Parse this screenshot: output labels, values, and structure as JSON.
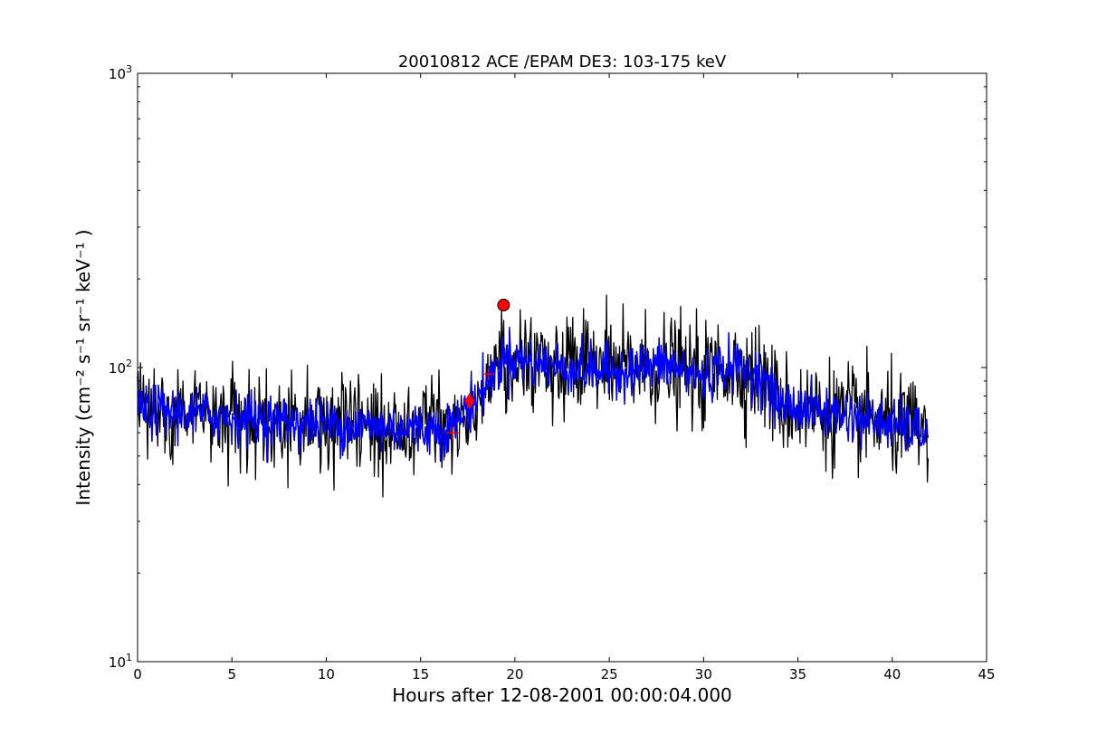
{
  "chart_data": {
    "type": "line",
    "title": "20010812 ACE /EPAM DE3: 103-175 keV",
    "xlabel": "Hours after 12-08-2001 00:00:04.000",
    "ylabel": "Intensity (cm⁻² s⁻¹ sr⁻¹ keV⁻¹ )",
    "xlim": [
      0,
      45
    ],
    "ylim": [
      10,
      1000
    ],
    "yscale": "log",
    "grid": false,
    "x_ticks": [
      0,
      5,
      10,
      15,
      20,
      25,
      30,
      35,
      40,
      45
    ],
    "x_tick_labels": [
      "0",
      "5",
      "10",
      "15",
      "20",
      "25",
      "30",
      "35",
      "40",
      "45"
    ],
    "y_tick_labels": [
      {
        "value": 10,
        "base": "10",
        "exp": "1"
      },
      {
        "value": 100,
        "base": "10",
        "exp": "2"
      },
      {
        "value": 1000,
        "base": "10",
        "exp": "3"
      }
    ],
    "series": [
      {
        "color": "#000000",
        "style": "raw",
        "x_start": 0,
        "x_end": 41.9,
        "n_points": 1100,
        "envelope": [
          {
            "x": 0,
            "y": 72
          },
          {
            "x": 5,
            "y": 68
          },
          {
            "x": 10,
            "y": 64
          },
          {
            "x": 15,
            "y": 62
          },
          {
            "x": 16.5,
            "y": 62
          },
          {
            "x": 17.5,
            "y": 72
          },
          {
            "x": 18.5,
            "y": 88
          },
          {
            "x": 19.5,
            "y": 110
          },
          {
            "x": 21,
            "y": 103
          },
          {
            "x": 25,
            "y": 97
          },
          {
            "x": 28,
            "y": 102
          },
          {
            "x": 30,
            "y": 92
          },
          {
            "x": 31,
            "y": 102
          },
          {
            "x": 33,
            "y": 95
          },
          {
            "x": 34,
            "y": 75
          },
          {
            "x": 38,
            "y": 68
          },
          {
            "x": 41.9,
            "y": 60
          }
        ]
      },
      {
        "color": "#0000ff",
        "style": "smoothed",
        "x_start": 0,
        "x_end": 41.9,
        "n_points": 1100,
        "envelope": [
          {
            "x": 0,
            "y": 72
          },
          {
            "x": 5,
            "y": 68
          },
          {
            "x": 10,
            "y": 64
          },
          {
            "x": 15,
            "y": 62
          },
          {
            "x": 16.5,
            "y": 62
          },
          {
            "x": 17.5,
            "y": 72
          },
          {
            "x": 18.5,
            "y": 88
          },
          {
            "x": 19.5,
            "y": 110
          },
          {
            "x": 21,
            "y": 103
          },
          {
            "x": 25,
            "y": 97
          },
          {
            "x": 28,
            "y": 102
          },
          {
            "x": 30,
            "y": 92
          },
          {
            "x": 31,
            "y": 102
          },
          {
            "x": 33,
            "y": 95
          },
          {
            "x": 34,
            "y": 75
          },
          {
            "x": 38,
            "y": 68
          },
          {
            "x": 41.9,
            "y": 60
          }
        ]
      }
    ],
    "markers": [
      {
        "shape": "plus",
        "x": 16.7,
        "y": 60,
        "color": "#ff0000"
      },
      {
        "shape": "diamond",
        "x": 17.6,
        "y": 77,
        "color": "#ff0000"
      },
      {
        "shape": "plus",
        "x": 18.6,
        "y": 95,
        "color": "#ff0000"
      },
      {
        "shape": "circle",
        "x": 19.4,
        "y": 163,
        "color": "#ff0000"
      }
    ]
  }
}
